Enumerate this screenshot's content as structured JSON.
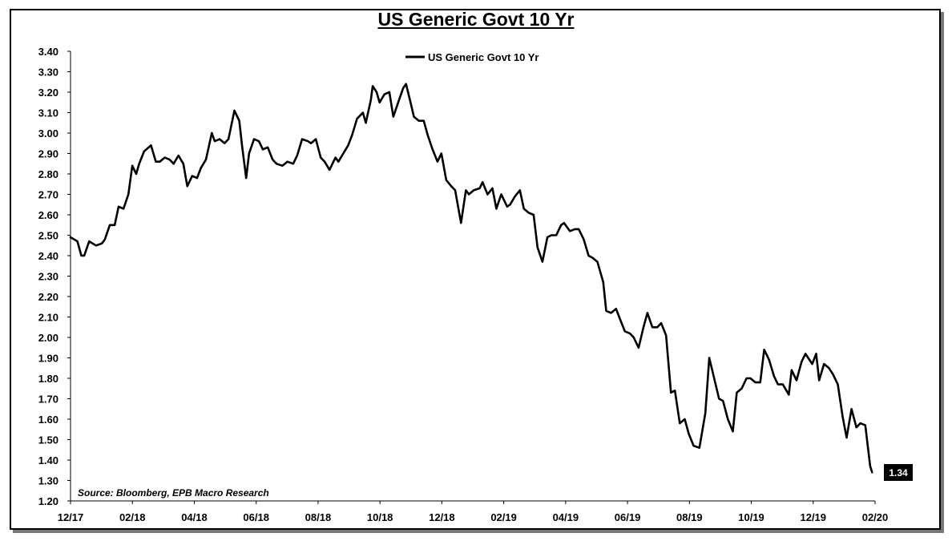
{
  "chart_data": {
    "type": "line",
    "title": "US Generic Govt 10 Yr",
    "xlabel": "",
    "ylabel": "",
    "ylim": [
      1.2,
      3.4
    ],
    "y_ticks": [
      "1.20",
      "1.30",
      "1.40",
      "1.50",
      "1.60",
      "1.70",
      "1.80",
      "1.90",
      "2.00",
      "2.10",
      "2.20",
      "2.30",
      "2.40",
      "2.50",
      "2.60",
      "2.70",
      "2.80",
      "2.90",
      "3.00",
      "3.10",
      "3.20",
      "3.30",
      "3.40"
    ],
    "x_ticks": [
      "12/17",
      "02/18",
      "04/18",
      "06/18",
      "08/18",
      "10/18",
      "12/18",
      "02/19",
      "04/19",
      "06/19",
      "08/19",
      "10/19",
      "12/19",
      "02/20"
    ],
    "legend": {
      "position": "top-center",
      "entries": [
        "US Generic Govt 10 Yr"
      ]
    },
    "grid": false,
    "last_value_label": "1.34",
    "source_note": "Source: Bloomberg, EPB Macro Research",
    "series": [
      {
        "name": "US Generic Govt 10 Yr",
        "color": "#000000",
        "points": [
          [
            "2017-12-01",
            2.49
          ],
          [
            "2017-12-08",
            2.47
          ],
          [
            "2017-12-12",
            2.4
          ],
          [
            "2017-12-15",
            2.4
          ],
          [
            "2017-12-20",
            2.47
          ],
          [
            "2017-12-27",
            2.45
          ],
          [
            "2018-01-02",
            2.46
          ],
          [
            "2018-01-05",
            2.48
          ],
          [
            "2018-01-10",
            2.55
          ],
          [
            "2018-01-15",
            2.55
          ],
          [
            "2018-01-19",
            2.64
          ],
          [
            "2018-01-24",
            2.63
          ],
          [
            "2018-01-29",
            2.7
          ],
          [
            "2018-02-02",
            2.84
          ],
          [
            "2018-02-06",
            2.8
          ],
          [
            "2018-02-09",
            2.85
          ],
          [
            "2018-02-14",
            2.91
          ],
          [
            "2018-02-21",
            2.94
          ],
          [
            "2018-02-26",
            2.86
          ],
          [
            "2018-03-02",
            2.86
          ],
          [
            "2018-03-07",
            2.88
          ],
          [
            "2018-03-12",
            2.87
          ],
          [
            "2018-03-16",
            2.85
          ],
          [
            "2018-03-21",
            2.89
          ],
          [
            "2018-03-26",
            2.85
          ],
          [
            "2018-03-30",
            2.74
          ],
          [
            "2018-04-04",
            2.79
          ],
          [
            "2018-04-09",
            2.78
          ],
          [
            "2018-04-13",
            2.83
          ],
          [
            "2018-04-18",
            2.87
          ],
          [
            "2018-04-24",
            3.0
          ],
          [
            "2018-04-27",
            2.96
          ],
          [
            "2018-05-02",
            2.97
          ],
          [
            "2018-05-07",
            2.95
          ],
          [
            "2018-05-11",
            2.97
          ],
          [
            "2018-05-17",
            3.11
          ],
          [
            "2018-05-22",
            3.06
          ],
          [
            "2018-05-25",
            2.93
          ],
          [
            "2018-05-29",
            2.78
          ],
          [
            "2018-06-01",
            2.9
          ],
          [
            "2018-06-06",
            2.97
          ],
          [
            "2018-06-11",
            2.96
          ],
          [
            "2018-06-15",
            2.92
          ],
          [
            "2018-06-20",
            2.93
          ],
          [
            "2018-06-25",
            2.87
          ],
          [
            "2018-06-29",
            2.85
          ],
          [
            "2018-07-05",
            2.84
          ],
          [
            "2018-07-10",
            2.86
          ],
          [
            "2018-07-16",
            2.85
          ],
          [
            "2018-07-20",
            2.89
          ],
          [
            "2018-07-25",
            2.97
          ],
          [
            "2018-07-31",
            2.96
          ],
          [
            "2018-08-03",
            2.95
          ],
          [
            "2018-08-08",
            2.97
          ],
          [
            "2018-08-13",
            2.88
          ],
          [
            "2018-08-17",
            2.86
          ],
          [
            "2018-08-22",
            2.82
          ],
          [
            "2018-08-28",
            2.88
          ],
          [
            "2018-08-31",
            2.86
          ],
          [
            "2018-09-05",
            2.9
          ],
          [
            "2018-09-10",
            2.94
          ],
          [
            "2018-09-14",
            2.99
          ],
          [
            "2018-09-19",
            3.07
          ],
          [
            "2018-09-25",
            3.1
          ],
          [
            "2018-09-28",
            3.05
          ],
          [
            "2018-10-03",
            3.16
          ],
          [
            "2018-10-05",
            3.23
          ],
          [
            "2018-10-09",
            3.2
          ],
          [
            "2018-10-12",
            3.15
          ],
          [
            "2018-10-17",
            3.19
          ],
          [
            "2018-10-22",
            3.2
          ],
          [
            "2018-10-26",
            3.08
          ],
          [
            "2018-10-31",
            3.15
          ],
          [
            "2018-11-05",
            3.22
          ],
          [
            "2018-11-08",
            3.24
          ],
          [
            "2018-11-13",
            3.14
          ],
          [
            "2018-11-16",
            3.08
          ],
          [
            "2018-11-21",
            3.06
          ],
          [
            "2018-11-26",
            3.06
          ],
          [
            "2018-11-30",
            2.99
          ],
          [
            "2018-12-05",
            2.92
          ],
          [
            "2018-12-10",
            2.86
          ],
          [
            "2018-12-14",
            2.9
          ],
          [
            "2018-12-19",
            2.77
          ],
          [
            "2018-12-24",
            2.74
          ],
          [
            "2018-12-28",
            2.72
          ],
          [
            "2019-01-03",
            2.56
          ],
          [
            "2019-01-08",
            2.72
          ],
          [
            "2019-01-11",
            2.7
          ],
          [
            "2019-01-16",
            2.72
          ],
          [
            "2019-01-22",
            2.73
          ],
          [
            "2019-01-25",
            2.76
          ],
          [
            "2019-01-30",
            2.7
          ],
          [
            "2019-02-04",
            2.73
          ],
          [
            "2019-02-08",
            2.63
          ],
          [
            "2019-02-13",
            2.7
          ],
          [
            "2019-02-19",
            2.64
          ],
          [
            "2019-02-22",
            2.65
          ],
          [
            "2019-02-27",
            2.69
          ],
          [
            "2019-03-04",
            2.72
          ],
          [
            "2019-03-08",
            2.63
          ],
          [
            "2019-03-13",
            2.61
          ],
          [
            "2019-03-18",
            2.6
          ],
          [
            "2019-03-22",
            2.44
          ],
          [
            "2019-03-27",
            2.37
          ],
          [
            "2019-04-01",
            2.49
          ],
          [
            "2019-04-05",
            2.5
          ],
          [
            "2019-04-10",
            2.5
          ],
          [
            "2019-04-15",
            2.55
          ],
          [
            "2019-04-18",
            2.56
          ],
          [
            "2019-04-24",
            2.52
          ],
          [
            "2019-04-29",
            2.53
          ],
          [
            "2019-05-03",
            2.53
          ],
          [
            "2019-05-08",
            2.48
          ],
          [
            "2019-05-13",
            2.4
          ],
          [
            "2019-05-17",
            2.39
          ],
          [
            "2019-05-22",
            2.37
          ],
          [
            "2019-05-28",
            2.27
          ],
          [
            "2019-05-31",
            2.13
          ],
          [
            "2019-06-05",
            2.12
          ],
          [
            "2019-06-10",
            2.14
          ],
          [
            "2019-06-14",
            2.09
          ],
          [
            "2019-06-19",
            2.03
          ],
          [
            "2019-06-24",
            2.02
          ],
          [
            "2019-06-28",
            2.0
          ],
          [
            "2019-07-03",
            1.95
          ],
          [
            "2019-07-08",
            2.05
          ],
          [
            "2019-07-12",
            2.12
          ],
          [
            "2019-07-17",
            2.05
          ],
          [
            "2019-07-22",
            2.05
          ],
          [
            "2019-07-26",
            2.07
          ],
          [
            "2019-07-31",
            2.01
          ],
          [
            "2019-08-05",
            1.73
          ],
          [
            "2019-08-09",
            1.74
          ],
          [
            "2019-08-14",
            1.58
          ],
          [
            "2019-08-19",
            1.6
          ],
          [
            "2019-08-23",
            1.53
          ],
          [
            "2019-08-28",
            1.47
          ],
          [
            "2019-09-03",
            1.46
          ],
          [
            "2019-09-09",
            1.63
          ],
          [
            "2019-09-13",
            1.9
          ],
          [
            "2019-09-18",
            1.8
          ],
          [
            "2019-09-23",
            1.7
          ],
          [
            "2019-09-27",
            1.69
          ],
          [
            "2019-10-02",
            1.6
          ],
          [
            "2019-10-07",
            1.54
          ],
          [
            "2019-10-11",
            1.73
          ],
          [
            "2019-10-16",
            1.75
          ],
          [
            "2019-10-21",
            1.8
          ],
          [
            "2019-10-25",
            1.8
          ],
          [
            "2019-10-30",
            1.78
          ],
          [
            "2019-11-04",
            1.78
          ],
          [
            "2019-11-08",
            1.94
          ],
          [
            "2019-11-13",
            1.89
          ],
          [
            "2019-11-18",
            1.81
          ],
          [
            "2019-11-22",
            1.77
          ],
          [
            "2019-11-27",
            1.77
          ],
          [
            "2019-12-03",
            1.72
          ],
          [
            "2019-12-06",
            1.84
          ],
          [
            "2019-12-11",
            1.79
          ],
          [
            "2019-12-16",
            1.88
          ],
          [
            "2019-12-20",
            1.92
          ],
          [
            "2019-12-27",
            1.87
          ],
          [
            "2019-12-31",
            1.92
          ],
          [
            "2020-01-03",
            1.79
          ],
          [
            "2020-01-08",
            1.87
          ],
          [
            "2020-01-13",
            1.85
          ],
          [
            "2020-01-17",
            1.82
          ],
          [
            "2020-01-22",
            1.77
          ],
          [
            "2020-01-27",
            1.61
          ],
          [
            "2020-01-31",
            1.51
          ],
          [
            "2020-02-05",
            1.65
          ],
          [
            "2020-02-10",
            1.56
          ],
          [
            "2020-02-14",
            1.58
          ],
          [
            "2020-02-19",
            1.57
          ],
          [
            "2020-02-24",
            1.37
          ],
          [
            "2020-02-26",
            1.34
          ]
        ]
      }
    ]
  }
}
